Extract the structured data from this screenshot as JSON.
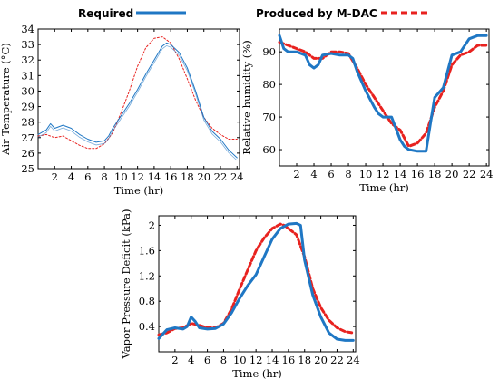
{
  "legend": {
    "required_label": "Required",
    "mdac_label": "Produced by M-DAC"
  },
  "colors": {
    "required": "#1f77c4",
    "mdac": "#e8221f"
  },
  "chart_data": [
    {
      "id": "air-temperature",
      "type": "line",
      "xlabel": "Time (hr)",
      "ylabel": "Air Temperature (°C)",
      "xlim": [
        0,
        24.3
      ],
      "ylim": [
        25,
        34
      ],
      "xticks": [
        2,
        4,
        6,
        8,
        10,
        12,
        14,
        16,
        18,
        20,
        22,
        24
      ],
      "yticks": [
        25,
        26,
        27,
        28,
        29,
        30,
        31,
        32,
        33,
        34
      ],
      "line_style": "thin",
      "series": [
        {
          "name": "Required",
          "x": [
            0,
            1,
            1.5,
            2,
            3,
            4,
            5,
            6,
            7,
            8,
            8.5,
            9,
            10,
            11,
            12,
            13,
            14,
            15,
            15.5,
            16,
            17,
            18,
            19,
            20,
            21,
            22,
            23,
            24
          ],
          "y": [
            27.2,
            27.5,
            27.9,
            27.6,
            27.8,
            27.6,
            27.2,
            26.9,
            26.7,
            26.8,
            27.1,
            27.6,
            28.4,
            29.2,
            30.1,
            31.1,
            32.0,
            32.9,
            33.1,
            33.0,
            32.5,
            31.5,
            30.0,
            28.3,
            27.4,
            26.9,
            26.2,
            25.7
          ]
        },
        {
          "name": "Produced by M-DAC",
          "x": [
            0,
            1,
            2,
            3,
            4,
            5,
            6,
            7,
            8,
            9,
            10,
            11,
            12,
            13,
            14,
            15,
            16,
            17,
            18,
            19,
            20,
            21,
            22,
            23,
            24
          ],
          "y": [
            27.1,
            27.2,
            27.0,
            27.1,
            26.8,
            26.5,
            26.3,
            26.3,
            26.6,
            27.3,
            28.6,
            30.0,
            31.6,
            32.8,
            33.4,
            33.5,
            33.1,
            32.1,
            30.8,
            29.4,
            28.3,
            27.6,
            27.2,
            26.9,
            26.9
          ]
        }
      ]
    },
    {
      "id": "relative-humidity",
      "type": "line",
      "xlabel": "Time (hr)",
      "ylabel": "Relative humidity (%)",
      "xlim": [
        0,
        24.3
      ],
      "ylim": [
        55,
        97
      ],
      "xticks": [
        2,
        4,
        6,
        8,
        10,
        12,
        14,
        16,
        18,
        20,
        22,
        24
      ],
      "yticks": [
        60,
        70,
        80,
        90
      ],
      "line_style": "thick",
      "series": [
        {
          "name": "Required",
          "x": [
            0,
            0.5,
            1,
            2,
            3,
            3.5,
            4,
            4.5,
            5,
            6,
            7,
            8,
            8.5,
            9,
            10,
            11,
            11.5,
            12,
            13,
            14,
            14.5,
            15,
            16,
            17,
            17.5,
            18,
            19,
            20,
            21,
            22,
            23,
            24
          ],
          "y": [
            95,
            91,
            90,
            90,
            89,
            86,
            85,
            86,
            89,
            89.5,
            89,
            89,
            88,
            84,
            78,
            73,
            71,
            70,
            70,
            63,
            61,
            60,
            59.5,
            59.5,
            68,
            76,
            79,
            89,
            90,
            94,
            95,
            95
          ]
        },
        {
          "name": "Produced by M-DAC",
          "x": [
            0,
            1,
            2,
            3,
            4,
            5,
            6,
            7,
            8,
            9,
            10,
            11,
            12,
            13,
            14,
            15,
            16,
            17,
            18,
            19,
            20,
            21,
            22,
            23,
            24
          ],
          "y": [
            93,
            92,
            91,
            90,
            88,
            88,
            90,
            90,
            89.5,
            85,
            80,
            76,
            72,
            68,
            66,
            61,
            62,
            65,
            73,
            78,
            86,
            89,
            90,
            92,
            92
          ]
        }
      ]
    },
    {
      "id": "vapor-pressure-deficit",
      "type": "line",
      "xlabel": "Time (hr)",
      "ylabel": "Vapor Pressure Deficit (kPa)",
      "xlim": [
        0,
        24.3
      ],
      "ylim": [
        0,
        2.15
      ],
      "xticks": [
        2,
        4,
        6,
        8,
        10,
        12,
        14,
        16,
        18,
        20,
        22,
        24
      ],
      "yticks": [
        0.4,
        0.8,
        1.2,
        1.6,
        2.0
      ],
      "ytick_labels": [
        "0.4",
        "0.8",
        "1.2",
        "1.6",
        "2"
      ],
      "line_style": "thick",
      "series": [
        {
          "name": "Required",
          "x": [
            0,
            1,
            2,
            3,
            3.5,
            4,
            4.5,
            5,
            6,
            7,
            8,
            9,
            10,
            11,
            12,
            13,
            14,
            15,
            16,
            17,
            17.5,
            18,
            19,
            20,
            21,
            22,
            23,
            24
          ],
          "y": [
            0.21,
            0.35,
            0.38,
            0.36,
            0.4,
            0.55,
            0.48,
            0.38,
            0.36,
            0.37,
            0.44,
            0.62,
            0.85,
            1.05,
            1.22,
            1.5,
            1.78,
            1.95,
            2.02,
            2.03,
            2.0,
            1.45,
            0.9,
            0.55,
            0.3,
            0.2,
            0.18,
            0.18
          ]
        },
        {
          "name": "Produced by M-DAC",
          "x": [
            0,
            1,
            2,
            3,
            4,
            5,
            6,
            7,
            8,
            9,
            10,
            11,
            12,
            13,
            14,
            15,
            15.5,
            16,
            17,
            18,
            19,
            20,
            21,
            22,
            23,
            24
          ],
          "y": [
            0.27,
            0.3,
            0.37,
            0.38,
            0.45,
            0.42,
            0.38,
            0.38,
            0.45,
            0.68,
            1.0,
            1.3,
            1.6,
            1.8,
            1.95,
            2.02,
            2.0,
            1.95,
            1.85,
            1.5,
            1.0,
            0.7,
            0.5,
            0.38,
            0.32,
            0.3
          ]
        }
      ]
    }
  ]
}
